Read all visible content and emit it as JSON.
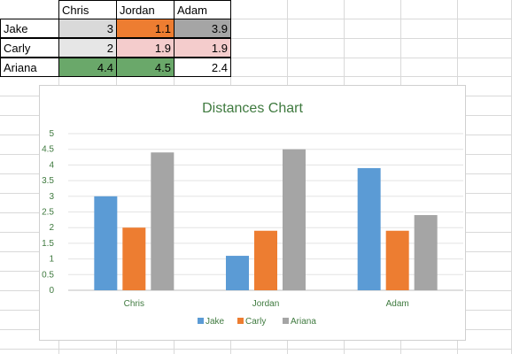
{
  "table": {
    "columns": [
      "Chris",
      "Jordan",
      "Adam"
    ],
    "rows": [
      {
        "label": "Jake",
        "values": [
          "3",
          "1.1",
          "3.9"
        ],
        "fills": [
          "#d9d9d9",
          "#ed7d31",
          "#a5a5a5"
        ]
      },
      {
        "label": "Carly",
        "values": [
          "2",
          "1.9",
          "1.9"
        ],
        "fills": [
          "#e6e6e6",
          "#f4cccc",
          "#f4cccc"
        ]
      },
      {
        "label": "Ariana",
        "values": [
          "4.4",
          "4.5",
          "2.4"
        ],
        "fills": [
          "#6aa86a",
          "#6aa86a",
          "#ffffff"
        ]
      }
    ]
  },
  "chart_data": {
    "type": "bar",
    "title": "Distances Chart",
    "categories": [
      "Chris",
      "Jordan",
      "Adam"
    ],
    "series": [
      {
        "name": "Jake",
        "values": [
          3,
          1.1,
          3.9
        ],
        "color": "#5b9bd5"
      },
      {
        "name": "Carly",
        "values": [
          2,
          1.9,
          1.9
        ],
        "color": "#ed7d31"
      },
      {
        "name": "Ariana",
        "values": [
          4.4,
          4.5,
          2.4
        ],
        "color": "#a5a5a5"
      }
    ],
    "ylim": [
      0,
      5
    ],
    "yticks": [
      "0",
      "0.5",
      "1",
      "1.5",
      "2",
      "2.5",
      "3",
      "3.5",
      "4",
      "4.5",
      "5"
    ],
    "grid": true,
    "legend": "bottom"
  }
}
